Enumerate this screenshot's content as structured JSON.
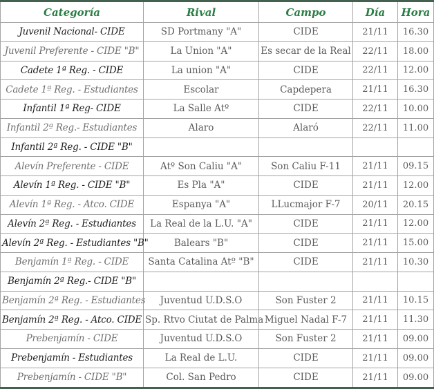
{
  "colors": {
    "header_green": "#2a7d45",
    "frame_green": "#44604f",
    "grid_gray": "#a3a3a3",
    "text_dark": "#1e1e1e",
    "text_gray": "#707070",
    "value_text": "#5b5b5b"
  },
  "table": {
    "headers": [
      "Categoría",
      "Rival",
      "Campo",
      "Día",
      "Hora"
    ],
    "rows": [
      {
        "categoria": "Juvenil Nacional- CIDE",
        "rival": "SD Portmany \"A\"",
        "campo": "CIDE",
        "dia": "21/11",
        "hora": "16.30",
        "style": "dark"
      },
      {
        "categoria": "Juvenil Preferente - CIDE \"B\"",
        "rival": "La Union \"A\"",
        "campo": "Es secar de la Real",
        "dia": "22/11",
        "hora": "18.00",
        "style": "gray"
      },
      {
        "categoria": "Cadete 1ª Reg. - CIDE",
        "rival": "La union \"A\"",
        "campo": "CIDE",
        "dia": "22/11",
        "hora": "12.00",
        "style": "dark"
      },
      {
        "categoria": "Cadete 1ª Reg. - Estudiantes",
        "rival": "Escolar",
        "campo": "Capdepera",
        "dia": "21/11",
        "hora": "16.30",
        "style": "gray"
      },
      {
        "categoria": "Infantil 1ª Reg- CIDE",
        "rival": "La Salle Atº",
        "campo": "CIDE",
        "dia": "22/11",
        "hora": "10.00",
        "style": "dark"
      },
      {
        "categoria": "Infantil 2ª Reg.- Estudiantes",
        "rival": "Alaro",
        "campo": "Alaró",
        "dia": "22/11",
        "hora": "11.00",
        "style": "gray"
      },
      {
        "categoria": "Infantil 2ª Reg. - CIDE \"B\"",
        "rival": "",
        "campo": "",
        "dia": "",
        "hora": "",
        "style": "dark"
      },
      {
        "categoria": "Alevín Preferente - CIDE",
        "rival": "Atº Son Caliu \"A\"",
        "campo": "Son Caliu F-11",
        "dia": "21/11",
        "hora": "09.15",
        "style": "gray"
      },
      {
        "categoria": "Alevín 1ª Reg. - CIDE \"B\"",
        "rival": "Es Pla \"A\"",
        "campo": "CIDE",
        "dia": "21/11",
        "hora": "12.00",
        "style": "dark"
      },
      {
        "categoria": "Alevín 1ª Reg. - Atco. CIDE",
        "rival": "Espanya \"A\"",
        "campo": "LLucmajor F-7",
        "dia": "20/11",
        "hora": "20.15",
        "style": "gray"
      },
      {
        "categoria": "Alevín 2ª Reg. - Estudiantes",
        "rival": "La Real de la L.U. \"A\"",
        "campo": "CIDE",
        "dia": "21/11",
        "hora": "12.00",
        "style": "dark"
      },
      {
        "categoria": "Alevín 2ª Reg. - Estudiantes \"B\"",
        "rival": "Balears \"B\"",
        "campo": "CIDE",
        "dia": "21/11",
        "hora": "15.00",
        "style": "dark"
      },
      {
        "categoria": "Benjamín 1ª Reg. - CIDE",
        "rival": "Santa Catalina Atº \"B\"",
        "campo": "CIDE",
        "dia": "21/11",
        "hora": "10.30",
        "style": "gray"
      },
      {
        "categoria": "Benjamín 2ª Reg.- CIDE \"B\"",
        "rival": "",
        "campo": "",
        "dia": "",
        "hora": "",
        "style": "dark"
      },
      {
        "categoria": "Benjamín 2ª Reg. - Estudiantes",
        "rival": "Juventud U.D.S.O",
        "campo": "Son Fuster 2",
        "dia": "21/11",
        "hora": "10.15",
        "style": "gray"
      },
      {
        "categoria": "Benjamín 2ª Reg. - Atco. CIDE",
        "rival": "Sp. Rtvo Ciutat de Palma",
        "campo": "Miguel Nadal F-7",
        "dia": "21/11",
        "hora": "11.30",
        "style": "dark"
      },
      {
        "categoria": "Prebenjamín - CIDE",
        "rival": "Juventud U.D.S.O",
        "campo": "Son Fuster 2",
        "dia": "21/11",
        "hora": "09.00",
        "style": "gray"
      },
      {
        "categoria": "Prebenjamín - Estudiantes",
        "rival": "La Real de L.U.",
        "campo": "CIDE",
        "dia": "21/11",
        "hora": "09.00",
        "style": "dark"
      },
      {
        "categoria": "Prebenjamín - CIDE \"B\"",
        "rival": "Col. San Pedro",
        "campo": "CIDE",
        "dia": "21/11",
        "hora": "09.00",
        "style": "gray"
      }
    ]
  }
}
